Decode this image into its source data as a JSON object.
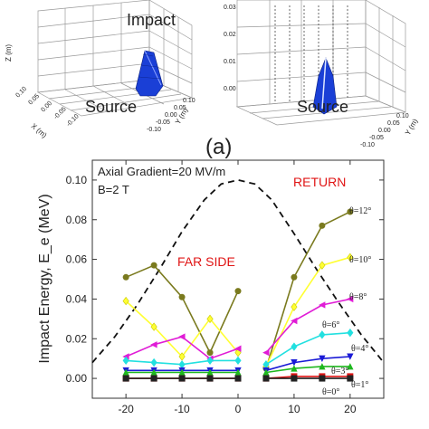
{
  "panel_label": "(a)",
  "top_left_3d": {
    "label_impact": "Impact",
    "label_source": "Source",
    "zlabel": "Z (m)",
    "xlabel": "X (m)",
    "ylabel": "Y (m)",
    "x_ticks": [
      "0.10",
      "0.05",
      "0.00",
      "-0.05",
      "-0.10"
    ],
    "y_ticks": [
      "0.10",
      "0.05",
      "0.00",
      "-0.05",
      "-0.10"
    ]
  },
  "top_right_3d": {
    "label_source": "Source",
    "z_ticks": [
      "0.03",
      "0.02",
      "0.01",
      "0.00"
    ],
    "y_ticks": [
      "0.10",
      "0.05",
      "0.00",
      "-0.05",
      "-0.10"
    ],
    "ylabel": "Y (m)"
  },
  "colors": {
    "surface": "#1a3fd6",
    "theta12": "#7a7a1e",
    "theta10": "#ffff33",
    "theta8": "#e01cd6",
    "theta6": "#22e0e0",
    "theta4": "#1a1ad6",
    "theta3": "#1fb81f",
    "theta1": "#e01515",
    "theta0": "#222222",
    "annot": "#e01515"
  },
  "chart_data": {
    "type": "line",
    "title": "",
    "xlabel": "",
    "ylabel": "Impact Energy, E_e (MeV)",
    "xlim": [
      -26,
      26
    ],
    "ylim": [
      -0.01,
      0.11
    ],
    "x_ticks": [
      -20,
      -10,
      0,
      10,
      20
    ],
    "y_ticks": [
      0.0,
      0.02,
      0.04,
      0.06,
      0.08,
      0.1
    ],
    "grid": false,
    "annotations": {
      "gradient": "Axial Gradient=20 MV/m",
      "field": "B=2 T",
      "return": "RETURN",
      "far_side": "FAR SIDE"
    },
    "dashed_curve": {
      "x": [
        -26,
        -22,
        -18,
        -14,
        -10,
        -6,
        -3,
        0,
        3,
        6,
        10,
        14,
        18,
        22,
        26
      ],
      "y": [
        0.008,
        0.021,
        0.037,
        0.055,
        0.074,
        0.09,
        0.098,
        0.1,
        0.098,
        0.09,
        0.073,
        0.055,
        0.038,
        0.022,
        0.008
      ]
    },
    "series": [
      {
        "key": "theta12",
        "name": "θ=12°",
        "far_x": [
          -20,
          -15,
          -10,
          -5,
          0
        ],
        "far_y": [
          0.051,
          0.057,
          0.041,
          0.013,
          0.044
        ],
        "ret_x": [
          5,
          10,
          15,
          20
        ],
        "ret_y": [
          0.005,
          0.051,
          0.077,
          0.084
        ]
      },
      {
        "key": "theta10",
        "name": "θ=10°",
        "far_x": [
          -20,
          -15,
          -10,
          -5,
          0
        ],
        "far_y": [
          0.039,
          0.026,
          0.011,
          0.03,
          0.013
        ],
        "ret_x": [
          5,
          10,
          15,
          20
        ],
        "ret_y": [
          0.006,
          0.036,
          0.057,
          0.061
        ]
      },
      {
        "key": "theta8",
        "name": "θ=8°",
        "far_x": [
          -20,
          -15,
          -10,
          -5,
          0
        ],
        "far_y": [
          0.011,
          0.017,
          0.021,
          0.01,
          0.015
        ],
        "ret_x": [
          5,
          10,
          15,
          20
        ],
        "ret_y": [
          0.013,
          0.029,
          0.037,
          0.04
        ]
      },
      {
        "key": "theta6",
        "name": "θ=6°",
        "far_x": [
          -20,
          -15,
          -10,
          -5,
          0
        ],
        "far_y": [
          0.009,
          0.008,
          0.007,
          0.009,
          0.009
        ],
        "ret_x": [
          5,
          10,
          15,
          20
        ],
        "ret_y": [
          0.007,
          0.016,
          0.022,
          0.023
        ]
      },
      {
        "key": "theta4",
        "name": "θ=4°",
        "far_x": [
          -20,
          -15,
          -10,
          -5,
          0
        ],
        "far_y": [
          0.004,
          0.004,
          0.004,
          0.004,
          0.004
        ],
        "ret_x": [
          5,
          10,
          15,
          20
        ],
        "ret_y": [
          0.004,
          0.008,
          0.01,
          0.011
        ]
      },
      {
        "key": "theta3",
        "name": "θ=3°",
        "far_x": [
          -20,
          -15,
          -10,
          -5,
          0
        ],
        "far_y": [
          0.003,
          0.003,
          0.003,
          0.003,
          0.003
        ],
        "ret_x": [
          5,
          10,
          15,
          20
        ],
        "ret_y": [
          0.003,
          0.005,
          0.006,
          0.006
        ]
      },
      {
        "key": "theta1",
        "name": "θ=1°",
        "far_x": [
          -20,
          -15,
          -10,
          -5,
          0
        ],
        "far_y": [
          0.0,
          0.0,
          0.0,
          0.0,
          0.0
        ],
        "ret_x": [
          5,
          10,
          15,
          20
        ],
        "ret_y": [
          0.0,
          0.001,
          0.001,
          0.001
        ]
      },
      {
        "key": "theta0",
        "name": "θ=0°",
        "far_x": [
          -20,
          -15,
          -10,
          -5,
          0
        ],
        "far_y": [
          0.0,
          0.0,
          0.0,
          0.0,
          0.0
        ],
        "ret_x": [
          5,
          10,
          15,
          20
        ],
        "ret_y": [
          0.0,
          0.0,
          0.0,
          0.0
        ]
      }
    ]
  }
}
